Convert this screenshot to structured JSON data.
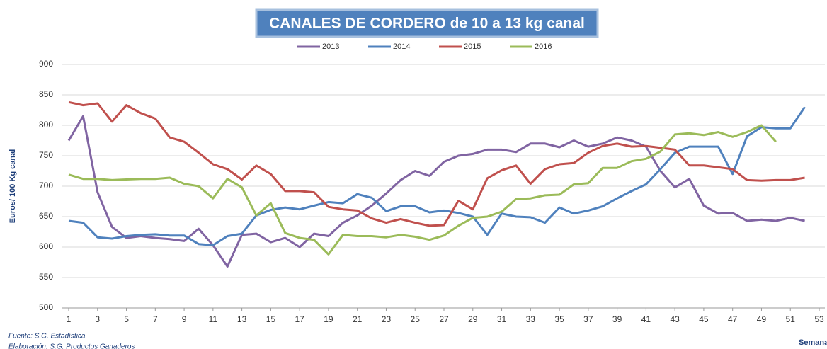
{
  "chart_data": {
    "type": "line",
    "title": "CANALES DE CORDERO de 10 a 13 kg canal",
    "y_label": "Euros/ 100 Kg canal",
    "x_label": "Semanas",
    "notes": [
      "Fuente: S.G. Estadística",
      "Elaboración: S.G. Productos Ganaderos"
    ],
    "x": [
      1,
      2,
      3,
      4,
      5,
      6,
      7,
      8,
      9,
      10,
      11,
      12,
      13,
      14,
      15,
      16,
      17,
      18,
      19,
      20,
      21,
      22,
      23,
      24,
      25,
      26,
      27,
      28,
      29,
      30,
      31,
      32,
      33,
      34,
      35,
      36,
      37,
      38,
      39,
      40,
      41,
      42,
      43,
      44,
      45,
      46,
      47,
      48,
      49,
      50,
      51,
      52
    ],
    "xlim": [
      1,
      53
    ],
    "xticks": [
      1,
      3,
      5,
      7,
      9,
      11,
      13,
      15,
      17,
      19,
      21,
      23,
      25,
      27,
      29,
      31,
      33,
      35,
      37,
      39,
      41,
      43,
      45,
      47,
      49,
      51,
      53
    ],
    "ylim": [
      500,
      900
    ],
    "yticks": [
      500,
      550,
      600,
      650,
      700,
      750,
      800,
      850,
      900
    ],
    "grid": true,
    "legend": "top",
    "series": [
      {
        "name": "2013",
        "color": "#8064a2",
        "values": [
          775,
          815,
          690,
          633,
          615,
          618,
          615,
          613,
          610,
          630,
          603,
          568,
          620,
          622,
          608,
          615,
          600,
          622,
          618,
          640,
          652,
          668,
          688,
          710,
          725,
          717,
          740,
          750,
          753,
          760,
          760,
          756,
          770,
          770,
          764,
          775,
          765,
          770,
          780,
          775,
          765,
          725,
          698,
          712,
          668,
          655,
          656,
          643,
          645,
          643,
          648,
          643
        ]
      },
      {
        "name": "2014",
        "color": "#4f81bd",
        "values": [
          643,
          640,
          616,
          614,
          618,
          620,
          621,
          619,
          619,
          605,
          603,
          618,
          622,
          652,
          661,
          665,
          662,
          668,
          674,
          672,
          687,
          681,
          659,
          667,
          667,
          657,
          660,
          656,
          650,
          620,
          655,
          650,
          649,
          640,
          665,
          655,
          660,
          667,
          680,
          692,
          703,
          728,
          755,
          765,
          765,
          765,
          720,
          782,
          797,
          795,
          795,
          830
        ]
      },
      {
        "name": "2015",
        "color": "#c0504d",
        "values": [
          838,
          833,
          836,
          806,
          833,
          820,
          811,
          780,
          773,
          755,
          736,
          728,
          711,
          734,
          720,
          692,
          692,
          690,
          666,
          662,
          660,
          647,
          640,
          646,
          640,
          635,
          636,
          676,
          662,
          713,
          726,
          734,
          704,
          728,
          736,
          738,
          755,
          766,
          770,
          765,
          766,
          763,
          760,
          734,
          734,
          731,
          728,
          710,
          709,
          710,
          710,
          714
        ]
      },
      {
        "name": "2016",
        "color": "#9bbb59",
        "values": [
          719,
          712,
          712,
          710,
          711,
          712,
          712,
          714,
          704,
          700,
          680,
          712,
          698,
          652,
          672,
          623,
          615,
          612,
          588,
          620,
          618,
          618,
          616,
          620,
          617,
          612,
          619,
          635,
          648,
          650,
          658,
          679,
          680,
          685,
          686,
          703,
          705,
          730,
          730,
          741,
          745,
          757,
          785,
          787,
          784,
          789,
          781,
          789,
          800,
          773,
          null,
          null
        ]
      }
    ]
  }
}
